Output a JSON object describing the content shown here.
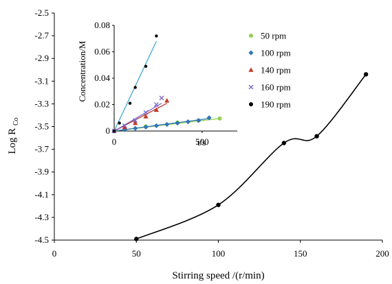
{
  "chart_data": [
    {
      "type": "line",
      "role": "main",
      "xlabel": "Stirring speed /(r/min)",
      "ylabel": "Log R",
      "ylabel_sub": "Co",
      "xlim": [
        0,
        200
      ],
      "ylim": [
        -4.5,
        -2.5
      ],
      "xticks": [
        "0",
        "50",
        "100",
        "150",
        "200"
      ],
      "yticks": [
        "-2.5",
        "-2.7",
        "-2.9",
        "-3.1",
        "-3.3",
        "-3.5",
        "-3.7",
        "-3.9",
        "-4.1",
        "-4.3",
        "-4.5"
      ],
      "grid": false,
      "smooth": true,
      "series": [
        {
          "color": "#000000",
          "x": [
            50,
            100,
            140,
            160,
            190
          ],
          "y": [
            -4.49,
            -4.19,
            -3.645,
            -3.585,
            -3.04
          ]
        }
      ]
    },
    {
      "type": "scatter",
      "role": "inset",
      "xlabel": "t/s",
      "ylabel": "Concentration/M",
      "xlim": [
        0,
        700
      ],
      "ylim": [
        0,
        0.08
      ],
      "xticks": [
        "0",
        "500"
      ],
      "yticks": [
        "0",
        "0.02",
        "0.04",
        "0.06",
        "0.08"
      ],
      "legend_position": "right",
      "series": [
        {
          "name": "50 rpm",
          "color": "#92D050",
          "marker": "circle",
          "x": [
            0,
            60,
            180,
            360,
            480,
            600
          ],
          "y": [
            0,
            0.0015,
            0.0035,
            0.0065,
            0.008,
            0.0095
          ],
          "fit": [
            [
              0,
              0
            ],
            [
              600,
              0.0095
            ]
          ]
        },
        {
          "name": "100 rpm",
          "color": "#2E75B6",
          "marker": "diamond",
          "x": [
            0,
            60,
            120,
            180,
            240,
            300,
            360,
            420,
            480,
            540
          ],
          "y": [
            0,
            0.001,
            0.002,
            0.003,
            0.004,
            0.005,
            0.006,
            0.007,
            0.008,
            0.01
          ],
          "fit": [
            [
              0,
              0
            ],
            [
              540,
              0.0095
            ]
          ]
        },
        {
          "name": "140 rpm",
          "color": "#C0392B",
          "marker": "triangle",
          "x": [
            0,
            60,
            120,
            180,
            240,
            300
          ],
          "y": [
            0,
            0.003,
            0.006,
            0.011,
            0.016,
            0.023
          ],
          "fit": [
            [
              0,
              0
            ],
            [
              300,
              0.021
            ]
          ]
        },
        {
          "name": "160 rpm",
          "color": "#7B68C8",
          "marker": "x",
          "x": [
            0,
            60,
            120,
            180,
            240,
            270
          ],
          "y": [
            0,
            0.004,
            0.008,
            0.014,
            0.02,
            0.025
          ],
          "fit": [
            [
              0,
              0
            ],
            [
              270,
              0.021
            ]
          ]
        },
        {
          "name": "190 rpm",
          "color": "#000000",
          "marker": "dot",
          "x": [
            0,
            30,
            90,
            120,
            180,
            240
          ],
          "y": [
            0,
            0.006,
            0.021,
            0.033,
            0.049,
            0.072
          ],
          "fit": [
            [
              0,
              0
            ],
            [
              240,
              0.068
            ]
          ],
          "fit_color": "#3FA9D0"
        }
      ]
    }
  ]
}
